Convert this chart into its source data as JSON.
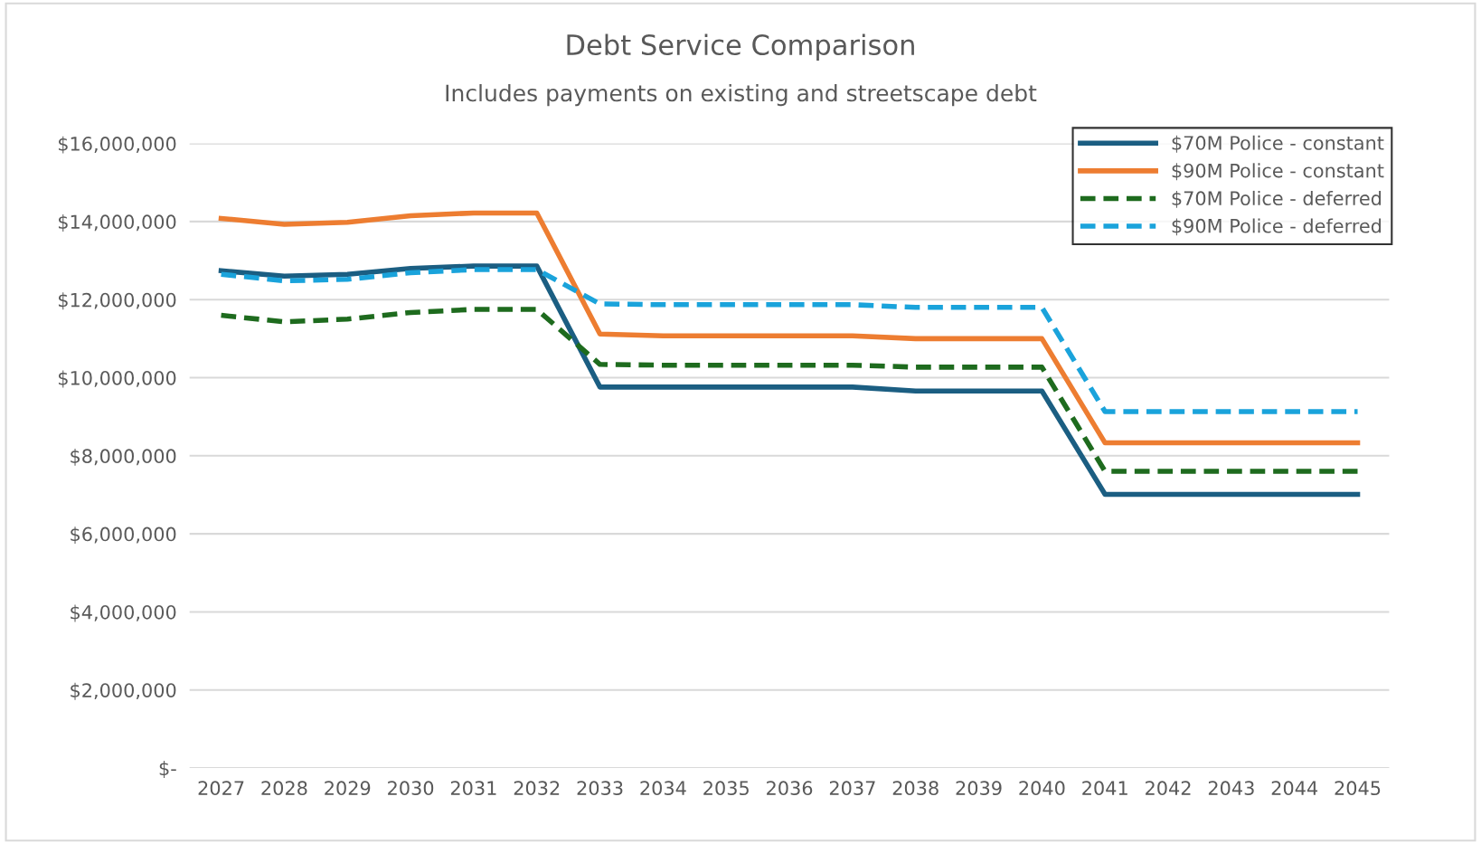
{
  "chart_data": {
    "type": "line",
    "title": "Debt Service Comparison",
    "subtitle": "Includes payments on existing and streetscape debt",
    "categories": [
      "2027",
      "2028",
      "2029",
      "2030",
      "2031",
      "2032",
      "2033",
      "2034",
      "2035",
      "2036",
      "2037",
      "2038",
      "2039",
      "2040",
      "2041",
      "2042",
      "2043",
      "2044",
      "2045"
    ],
    "series": [
      {
        "name": "$70M Police - constant",
        "color": "#1b5e82",
        "line_style": "solid",
        "values": [
          12740000,
          12600000,
          12650000,
          12800000,
          12860000,
          12860000,
          9760000,
          9760000,
          9760000,
          9760000,
          9760000,
          9660000,
          9660000,
          9660000,
          7010000,
          7010000,
          7010000,
          7010000,
          7010000
        ]
      },
      {
        "name": "$90M Police - constant",
        "color": "#ed7d31",
        "line_style": "solid",
        "values": [
          14080000,
          13930000,
          13980000,
          14150000,
          14220000,
          14220000,
          11120000,
          11070000,
          11070000,
          11070000,
          11070000,
          11000000,
          11000000,
          11000000,
          8330000,
          8330000,
          8330000,
          8330000,
          8330000
        ]
      },
      {
        "name": "$70M Police - deferred",
        "color": "#1e6b1e",
        "line_style": "dashed",
        "values": [
          11600000,
          11430000,
          11500000,
          11670000,
          11750000,
          11750000,
          10340000,
          10320000,
          10320000,
          10320000,
          10320000,
          10270000,
          10270000,
          10270000,
          7600000,
          7600000,
          7600000,
          7600000,
          7600000
        ]
      },
      {
        "name": "$90M Police - deferred",
        "color": "#1aa3db",
        "line_style": "dashed",
        "values": [
          12650000,
          12480000,
          12520000,
          12690000,
          12770000,
          12770000,
          11890000,
          11870000,
          11870000,
          11870000,
          11870000,
          11800000,
          11800000,
          11800000,
          9130000,
          9130000,
          9130000,
          9130000,
          9130000
        ]
      }
    ],
    "ylim": [
      0,
      16000000
    ],
    "yticks": [
      {
        "value": 0,
        "label": "$-"
      },
      {
        "value": 2000000,
        "label": "$2,000,000"
      },
      {
        "value": 4000000,
        "label": "$4,000,000"
      },
      {
        "value": 6000000,
        "label": "$6,000,000"
      },
      {
        "value": 8000000,
        "label": "$8,000,000"
      },
      {
        "value": 10000000,
        "label": "$10,000,000"
      },
      {
        "value": 12000000,
        "label": "$12,000,000"
      },
      {
        "value": 14000000,
        "label": "$14,000,000"
      },
      {
        "value": 16000000,
        "label": "$16,000,000"
      }
    ],
    "grid": "y",
    "legend": "top right",
    "marker": "none"
  }
}
